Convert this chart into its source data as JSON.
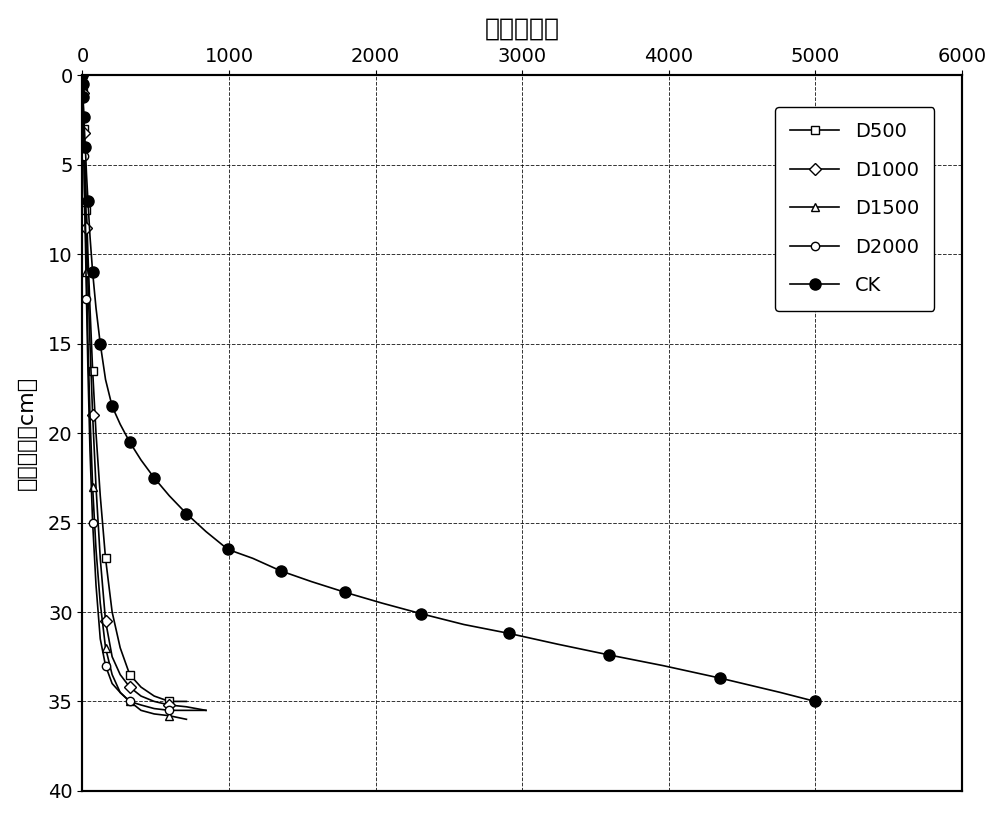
{
  "title": "时间（分）",
  "ylabel": "入渗深度（cm）",
  "xlim": [
    0,
    6000
  ],
  "ylim": [
    40,
    0
  ],
  "xticks": [
    0,
    1000,
    2000,
    3000,
    4000,
    5000,
    6000
  ],
  "yticks": [
    0,
    5,
    10,
    15,
    20,
    25,
    30,
    35,
    40
  ],
  "series": {
    "D500": {
      "x": [
        0,
        1,
        2,
        3,
        5,
        7,
        10,
        14,
        20,
        28,
        38,
        52,
        70,
        93,
        122,
        158,
        203,
        258,
        323,
        400,
        490,
        593,
        710
      ],
      "y": [
        0,
        0.3,
        0.6,
        1.0,
        1.5,
        2.2,
        3.0,
        4.0,
        5.5,
        7.5,
        10.0,
        13.0,
        16.5,
        20.0,
        23.5,
        27.0,
        30.0,
        32.0,
        33.5,
        34.2,
        34.7,
        35.0,
        35.0
      ],
      "marker": "s",
      "markersize": 6,
      "markerfacecolor": "white",
      "every": 3
    },
    "D1000": {
      "x": [
        0,
        1,
        2,
        3,
        5,
        7,
        10,
        14,
        20,
        28,
        38,
        52,
        70,
        93,
        122,
        158,
        203,
        258,
        323,
        400,
        490,
        593,
        710,
        843
      ],
      "y": [
        0,
        0.3,
        0.6,
        1.0,
        1.5,
        2.2,
        3.2,
        4.5,
        6.0,
        8.5,
        11.5,
        15.0,
        19.0,
        23.0,
        27.0,
        30.5,
        32.5,
        33.5,
        34.2,
        34.7,
        35.0,
        35.2,
        35.3,
        35.5
      ],
      "marker": "D",
      "markersize": 6,
      "markerfacecolor": "white",
      "every": 3
    },
    "D1500": {
      "x": [
        0,
        1,
        2,
        3,
        5,
        7,
        10,
        14,
        20,
        28,
        38,
        52,
        70,
        93,
        122,
        158,
        203,
        258,
        323,
        400,
        490,
        593,
        710
      ],
      "y": [
        0,
        0.3,
        0.6,
        1.0,
        1.8,
        2.8,
        4.0,
        5.8,
        8.0,
        11.0,
        15.0,
        19.0,
        23.0,
        26.5,
        29.5,
        32.0,
        33.5,
        34.5,
        35.0,
        35.5,
        35.7,
        35.8,
        36.0
      ],
      "marker": "^",
      "markersize": 6,
      "markerfacecolor": "white",
      "every": 3
    },
    "D2000": {
      "x": [
        0,
        1,
        2,
        3,
        5,
        7,
        10,
        14,
        20,
        28,
        38,
        52,
        70,
        93,
        122,
        158,
        203,
        258,
        323,
        400,
        490,
        593,
        710,
        843
      ],
      "y": [
        0,
        0.3,
        0.7,
        1.2,
        2.0,
        3.0,
        4.5,
        6.5,
        9.0,
        12.5,
        16.5,
        21.0,
        25.0,
        28.5,
        31.5,
        33.0,
        34.0,
        34.5,
        35.0,
        35.2,
        35.4,
        35.5,
        35.5,
        35.5
      ],
      "marker": "o",
      "markersize": 6,
      "markerfacecolor": "white",
      "every": 3
    },
    "CK": {
      "x": [
        0,
        1,
        2,
        3,
        5,
        7,
        10,
        14,
        20,
        28,
        38,
        52,
        70,
        93,
        122,
        158,
        203,
        258,
        323,
        400,
        490,
        593,
        710,
        843,
        993,
        1163,
        1353,
        1563,
        1793,
        2043,
        2313,
        2603,
        2913,
        3243,
        3593,
        3963,
        4353,
        4763,
        5000
      ],
      "y": [
        0,
        0.3,
        0.5,
        0.8,
        1.2,
        1.7,
        2.3,
        3.0,
        4.0,
        5.5,
        7.0,
        9.0,
        11.0,
        13.0,
        15.0,
        17.0,
        18.5,
        19.5,
        20.5,
        21.5,
        22.5,
        23.5,
        24.5,
        25.5,
        26.5,
        27.0,
        27.7,
        28.3,
        28.9,
        29.5,
        30.1,
        30.7,
        31.2,
        31.8,
        32.4,
        33.0,
        33.7,
        34.5,
        35.0
      ],
      "marker": "o",
      "markersize": 8,
      "markerfacecolor": "black",
      "every": 2
    }
  },
  "legend_order": [
    "D500",
    "D1000",
    "D1500",
    "D2000",
    "CK"
  ],
  "background_color": "#ffffff",
  "grid_linestyle": "--",
  "grid_alpha": 0.8
}
